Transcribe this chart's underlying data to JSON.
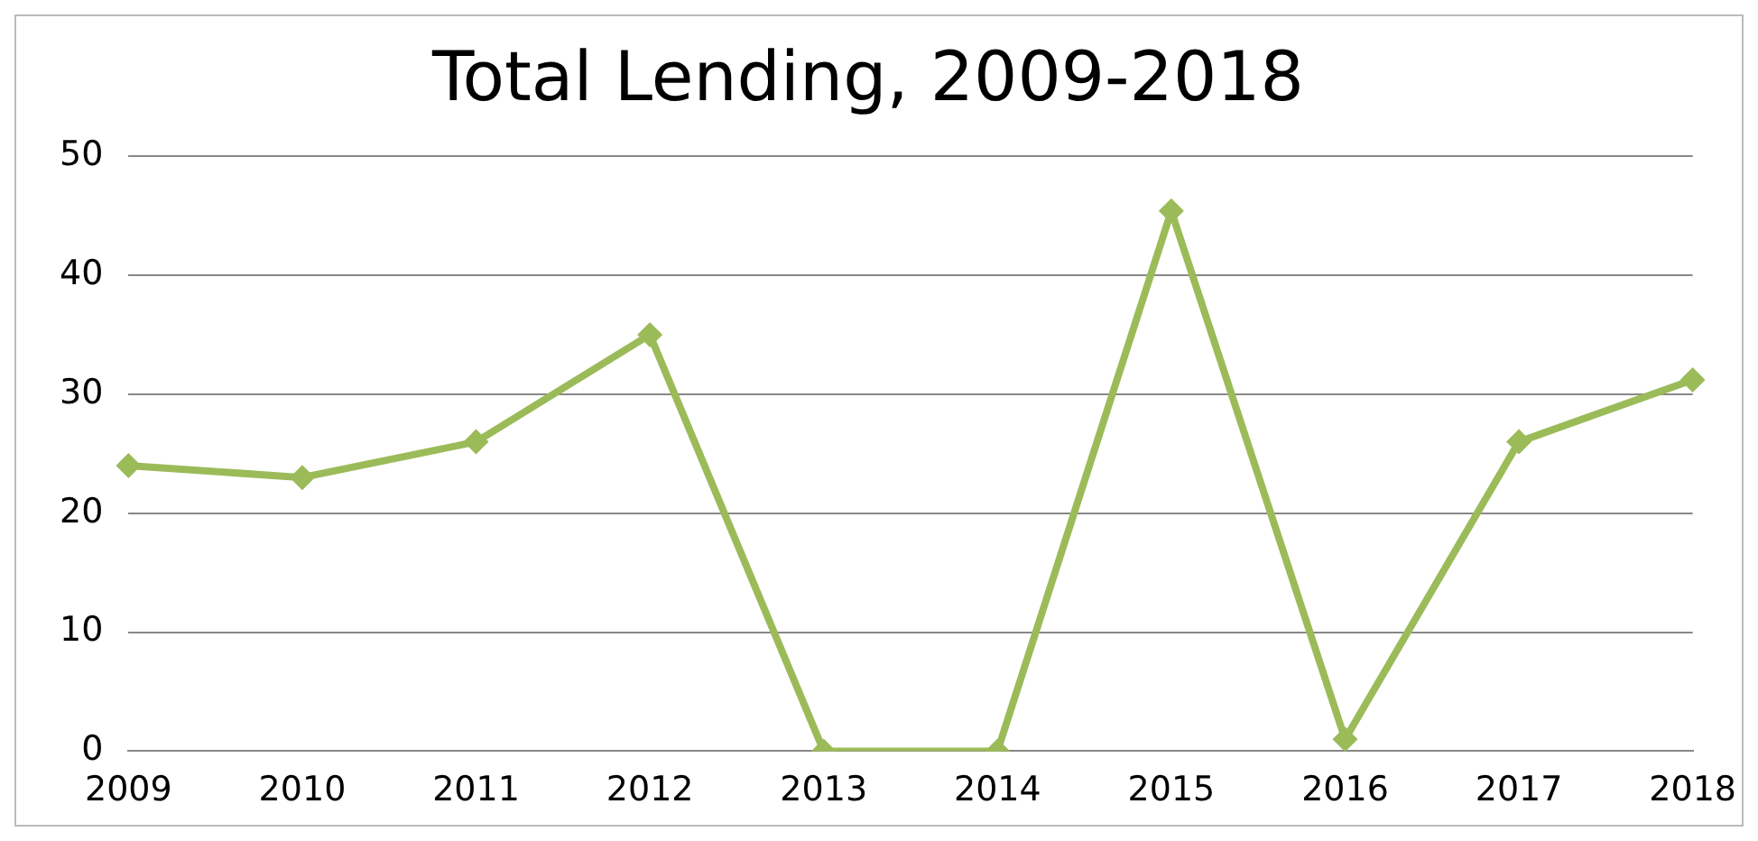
{
  "chart_data": {
    "type": "line",
    "title": "Total Lending, 2009-2018",
    "categories": [
      "2009",
      "2010",
      "2011",
      "2012",
      "2013",
      "2014",
      "2015",
      "2016",
      "2017",
      "2018"
    ],
    "series": [
      {
        "color": "#9bbb59",
        "values": [
          24,
          23,
          26,
          35,
          0,
          0,
          45.4,
          1,
          26,
          31.2
        ]
      }
    ],
    "ylim": [
      0,
      50
    ],
    "yticks": [
      0,
      10,
      20,
      30,
      40,
      50
    ],
    "grid": "y",
    "legend": false,
    "marker": "diamond",
    "line_style": "solid"
  }
}
